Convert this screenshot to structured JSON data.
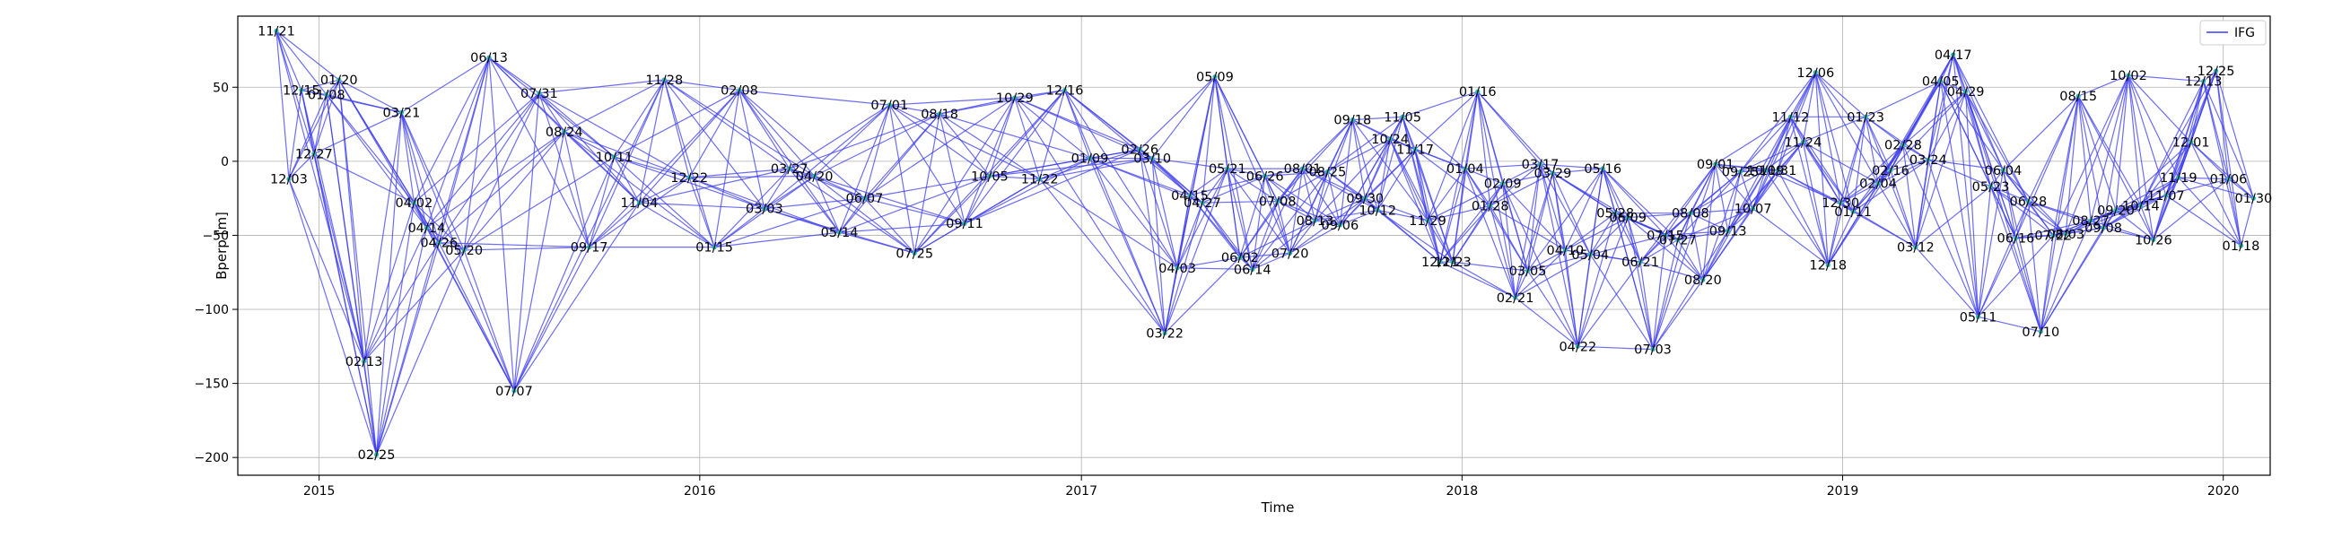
{
  "chart_data": {
    "type": "line",
    "xlabel": "Time",
    "ylabel": "Bperp [m]",
    "xlim": [
      "2014-10-15",
      "2020-02-15"
    ],
    "ylim": [
      -212,
      98
    ],
    "grid": true,
    "legend": {
      "placement": "top-right",
      "entries": [
        "IFG"
      ]
    },
    "x_ticks": [
      "2015",
      "2016",
      "2017",
      "2018",
      "2019",
      "2020"
    ],
    "y_ticks": [
      50,
      0,
      -50,
      -100,
      -150,
      -200
    ],
    "colors": {
      "line": "#3c3cf0",
      "point": "#2fb6b6"
    },
    "series": [
      {
        "name": "IFG",
        "acquisitions": [
          {
            "date": "2014-11-21",
            "label": "11/21",
            "bperp": 88
          },
          {
            "date": "2014-12-03",
            "label": "12/03",
            "bperp": -12
          },
          {
            "date": "2014-12-15",
            "label": "12/15",
            "bperp": 48
          },
          {
            "date": "2014-12-27",
            "label": "12/27",
            "bperp": 5
          },
          {
            "date": "2015-01-08",
            "label": "01/08",
            "bperp": 45
          },
          {
            "date": "2015-01-20",
            "label": "01/20",
            "bperp": 55
          },
          {
            "date": "2015-02-13",
            "label": "02/13",
            "bperp": -135
          },
          {
            "date": "2015-02-25",
            "label": "02/25",
            "bperp": -198
          },
          {
            "date": "2015-03-21",
            "label": "03/21",
            "bperp": 33
          },
          {
            "date": "2015-04-02",
            "label": "04/02",
            "bperp": -28
          },
          {
            "date": "2015-04-14",
            "label": "04/14",
            "bperp": -45
          },
          {
            "date": "2015-04-26",
            "label": "04/26",
            "bperp": -55
          },
          {
            "date": "2015-05-20",
            "label": "05/20",
            "bperp": -60
          },
          {
            "date": "2015-06-13",
            "label": "06/13",
            "bperp": 70
          },
          {
            "date": "2015-07-07",
            "label": "07/07",
            "bperp": -155
          },
          {
            "date": "2015-07-31",
            "label": "07/31",
            "bperp": 46
          },
          {
            "date": "2015-08-24",
            "label": "08/24",
            "bperp": 20
          },
          {
            "date": "2015-09-17",
            "label": "09/17",
            "bperp": -58
          },
          {
            "date": "2015-10-11",
            "label": "10/11",
            "bperp": 3
          },
          {
            "date": "2015-11-04",
            "label": "11/04",
            "bperp": -28
          },
          {
            "date": "2015-11-28",
            "label": "11/28",
            "bperp": 55
          },
          {
            "date": "2015-12-22",
            "label": "12/22",
            "bperp": -11
          },
          {
            "date": "2016-01-15",
            "label": "01/15",
            "bperp": -58
          },
          {
            "date": "2016-02-08",
            "label": "02/08",
            "bperp": 48
          },
          {
            "date": "2016-03-03",
            "label": "03/03",
            "bperp": -32
          },
          {
            "date": "2016-03-27",
            "label": "03/27",
            "bperp": -5
          },
          {
            "date": "2016-04-20",
            "label": "04/20",
            "bperp": -10
          },
          {
            "date": "2016-05-14",
            "label": "05/14",
            "bperp": -48
          },
          {
            "date": "2016-06-07",
            "label": "06/07",
            "bperp": -25
          },
          {
            "date": "2016-07-01",
            "label": "07/01",
            "bperp": 38
          },
          {
            "date": "2016-07-25",
            "label": "07/25",
            "bperp": -62
          },
          {
            "date": "2016-08-18",
            "label": "08/18",
            "bperp": 32
          },
          {
            "date": "2016-09-11",
            "label": "09/11",
            "bperp": -42
          },
          {
            "date": "2016-10-05",
            "label": "10/05",
            "bperp": -10
          },
          {
            "date": "2016-10-29",
            "label": "10/29",
            "bperp": 43
          },
          {
            "date": "2016-11-22",
            "label": "11/22",
            "bperp": -12
          },
          {
            "date": "2016-12-16",
            "label": "12/16",
            "bperp": 48
          },
          {
            "date": "2017-01-09",
            "label": "01/09",
            "bperp": 2
          },
          {
            "date": "2017-02-26",
            "label": "02/26",
            "bperp": 8
          },
          {
            "date": "2017-03-10",
            "label": "03/10",
            "bperp": 2
          },
          {
            "date": "2017-03-22",
            "label": "03/22",
            "bperp": -116
          },
          {
            "date": "2017-04-03",
            "label": "04/03",
            "bperp": -72
          },
          {
            "date": "2017-04-15",
            "label": "04/15",
            "bperp": -23
          },
          {
            "date": "2017-04-27",
            "label": "04/27",
            "bperp": -28
          },
          {
            "date": "2017-05-09",
            "label": "05/09",
            "bperp": 57
          },
          {
            "date": "2017-05-21",
            "label": "05/21",
            "bperp": -5
          },
          {
            "date": "2017-06-02",
            "label": "06/02",
            "bperp": -65
          },
          {
            "date": "2017-06-14",
            "label": "06/14",
            "bperp": -73
          },
          {
            "date": "2017-06-26",
            "label": "06/26",
            "bperp": -10
          },
          {
            "date": "2017-07-08",
            "label": "07/08",
            "bperp": -27
          },
          {
            "date": "2017-07-20",
            "label": "07/20",
            "bperp": -62
          },
          {
            "date": "2017-08-01",
            "label": "08/01",
            "bperp": -5
          },
          {
            "date": "2017-08-13",
            "label": "08/13",
            "bperp": -40
          },
          {
            "date": "2017-08-25",
            "label": "08/25",
            "bperp": -7
          },
          {
            "date": "2017-09-06",
            "label": "09/06",
            "bperp": -43
          },
          {
            "date": "2017-09-18",
            "label": "09/18",
            "bperp": 28
          },
          {
            "date": "2017-09-30",
            "label": "09/30",
            "bperp": -25
          },
          {
            "date": "2017-10-12",
            "label": "10/12",
            "bperp": -33
          },
          {
            "date": "2017-10-24",
            "label": "10/24",
            "bperp": 15
          },
          {
            "date": "2017-11-05",
            "label": "11/05",
            "bperp": 30
          },
          {
            "date": "2017-11-17",
            "label": "11/17",
            "bperp": 8
          },
          {
            "date": "2017-11-29",
            "label": "11/29",
            "bperp": -40
          },
          {
            "date": "2017-12-11",
            "label": "12/11",
            "bperp": -68
          },
          {
            "date": "2017-12-23",
            "label": "12/23",
            "bperp": -68
          },
          {
            "date": "2018-01-04",
            "label": "01/04",
            "bperp": -5
          },
          {
            "date": "2018-01-16",
            "label": "01/16",
            "bperp": 47
          },
          {
            "date": "2018-01-28",
            "label": "01/28",
            "bperp": -30
          },
          {
            "date": "2018-02-09",
            "label": "02/09",
            "bperp": -15
          },
          {
            "date": "2018-02-21",
            "label": "02/21",
            "bperp": -92
          },
          {
            "date": "2018-03-05",
            "label": "03/05",
            "bperp": -74
          },
          {
            "date": "2018-03-17",
            "label": "03/17",
            "bperp": -2
          },
          {
            "date": "2018-03-29",
            "label": "03/29",
            "bperp": -8
          },
          {
            "date": "2018-04-10",
            "label": "04/10",
            "bperp": -60
          },
          {
            "date": "2018-04-22",
            "label": "04/22",
            "bperp": -125
          },
          {
            "date": "2018-05-04",
            "label": "05/04",
            "bperp": -63
          },
          {
            "date": "2018-05-16",
            "label": "05/16",
            "bperp": -5
          },
          {
            "date": "2018-05-28",
            "label": "05/28",
            "bperp": -35
          },
          {
            "date": "2018-06-09",
            "label": "06/09",
            "bperp": -38
          },
          {
            "date": "2018-06-21",
            "label": "06/21",
            "bperp": -68
          },
          {
            "date": "2018-07-03",
            "label": "07/03",
            "bperp": -127
          },
          {
            "date": "2018-07-15",
            "label": "07/15",
            "bperp": -50
          },
          {
            "date": "2018-07-27",
            "label": "07/27",
            "bperp": -53
          },
          {
            "date": "2018-08-08",
            "label": "08/08",
            "bperp": -35
          },
          {
            "date": "2018-08-20",
            "label": "08/20",
            "bperp": -80
          },
          {
            "date": "2018-09-01",
            "label": "09/01",
            "bperp": -2
          },
          {
            "date": "2018-09-13",
            "label": "09/13",
            "bperp": -47
          },
          {
            "date": "2018-09-25",
            "label": "09/25",
            "bperp": -7
          },
          {
            "date": "2018-10-07",
            "label": "10/07",
            "bperp": -32
          },
          {
            "date": "2018-10-19",
            "label": "10/19",
            "bperp": -6
          },
          {
            "date": "2018-10-31",
            "label": "10/31",
            "bperp": -6
          },
          {
            "date": "2018-11-12",
            "label": "11/12",
            "bperp": 30
          },
          {
            "date": "2018-11-24",
            "label": "11/24",
            "bperp": 13
          },
          {
            "date": "2018-12-06",
            "label": "12/06",
            "bperp": 60
          },
          {
            "date": "2018-12-18",
            "label": "12/18",
            "bperp": -70
          },
          {
            "date": "2018-12-30",
            "label": "12/30",
            "bperp": -28
          },
          {
            "date": "2019-01-11",
            "label": "01/11",
            "bperp": -34
          },
          {
            "date": "2019-01-23",
            "label": "01/23",
            "bperp": 30
          },
          {
            "date": "2019-02-04",
            "label": "02/04",
            "bperp": -15
          },
          {
            "date": "2019-02-16",
            "label": "02/16",
            "bperp": -6
          },
          {
            "date": "2019-02-28",
            "label": "02/28",
            "bperp": 11
          },
          {
            "date": "2019-03-12",
            "label": "03/12",
            "bperp": -58
          },
          {
            "date": "2019-03-24",
            "label": "03/24",
            "bperp": 1
          },
          {
            "date": "2019-04-05",
            "label": "04/05",
            "bperp": 54
          },
          {
            "date": "2019-04-17",
            "label": "04/17",
            "bperp": 72
          },
          {
            "date": "2019-04-29",
            "label": "04/29",
            "bperp": 47
          },
          {
            "date": "2019-05-11",
            "label": "05/11",
            "bperp": -105
          },
          {
            "date": "2019-05-23",
            "label": "05/23",
            "bperp": -17
          },
          {
            "date": "2019-06-04",
            "label": "06/04",
            "bperp": -6
          },
          {
            "date": "2019-06-16",
            "label": "06/16",
            "bperp": -52
          },
          {
            "date": "2019-06-28",
            "label": "06/28",
            "bperp": -27
          },
          {
            "date": "2019-07-10",
            "label": "07/10",
            "bperp": -115
          },
          {
            "date": "2019-07-22",
            "label": "07/22",
            "bperp": -50
          },
          {
            "date": "2019-08-03",
            "label": "08/03",
            "bperp": -49
          },
          {
            "date": "2019-08-15",
            "label": "08/15",
            "bperp": 44
          },
          {
            "date": "2019-08-27",
            "label": "08/27",
            "bperp": -40
          },
          {
            "date": "2019-09-08",
            "label": "09/08",
            "bperp": -45
          },
          {
            "date": "2019-09-20",
            "label": "09/20",
            "bperp": -33
          },
          {
            "date": "2019-10-02",
            "label": "10/02",
            "bperp": 58
          },
          {
            "date": "2019-10-14",
            "label": "10/14",
            "bperp": -30
          },
          {
            "date": "2019-10-26",
            "label": "10/26",
            "bperp": -53
          },
          {
            "date": "2019-11-07",
            "label": "11/07",
            "bperp": -23
          },
          {
            "date": "2019-11-19",
            "label": "11/19",
            "bperp": -11
          },
          {
            "date": "2019-12-01",
            "label": "12/01",
            "bperp": 13
          },
          {
            "date": "2019-12-13",
            "label": "12/13",
            "bperp": 54
          },
          {
            "date": "2019-12-25",
            "label": "12/25",
            "bperp": 61
          },
          {
            "date": "2020-01-06",
            "label": "01/06",
            "bperp": -12
          },
          {
            "date": "2020-01-18",
            "label": "01/18",
            "bperp": -57
          },
          {
            "date": "2020-01-30",
            "label": "01/30",
            "bperp": -25
          }
        ],
        "connection_span": 6
      }
    ]
  }
}
